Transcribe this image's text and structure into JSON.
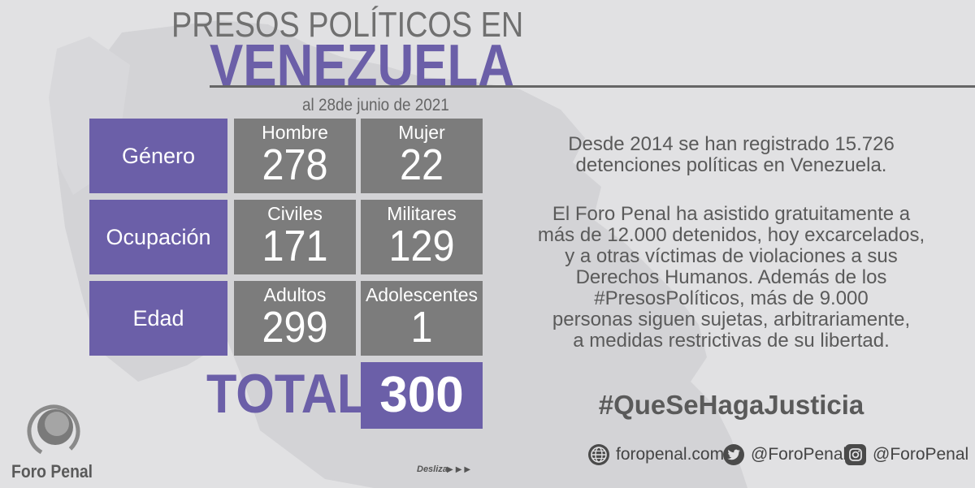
{
  "header": {
    "title_top": "PRESOS POLÍTICOS EN",
    "title_main": "VENEZUELA",
    "date": "al 28de junio de 2021"
  },
  "stats": {
    "rows": [
      {
        "category": "Género",
        "cells": [
          {
            "label": "Hombre",
            "value": "278"
          },
          {
            "label": "Mujer",
            "value": "22"
          }
        ]
      },
      {
        "category": "Ocupación",
        "cells": [
          {
            "label": "Civiles",
            "value": "171"
          },
          {
            "label": "Militares",
            "value": "129"
          }
        ]
      },
      {
        "category": "Edad",
        "cells": [
          {
            "label": "Adultos",
            "value": "299"
          },
          {
            "label": "Adolescentes",
            "value": "1"
          }
        ]
      }
    ],
    "total_label": "TOTAL",
    "total_value": "300"
  },
  "info": {
    "paragraph1": [
      "Desde 2014 se han registrado 15.726",
      "detenciones políticas en Venezuela."
    ],
    "paragraph2": [
      "El Foro Penal ha asistido gratuitamente a",
      "más de 12.000 detenidos, hoy excarcelados,",
      "y a otras víctimas de violaciones a sus",
      "Derechos Humanos. Además de los",
      "#PresosPolíticos, más de 9.000",
      "personas siguen sujetas, arbitrariamente,",
      "a medidas restrictivas de su libertad."
    ],
    "hashtag": "#QueSeHagaJusticia"
  },
  "footer": {
    "logo_text": "Foro Penal",
    "swipe_label": "Desliza",
    "swipe_arrows": "▶▶▶",
    "website": "foropenal.com",
    "twitter": "@ForoPenal",
    "instagram": "@ForoPenal",
    "icons": [
      "globe-icon",
      "twitter-icon",
      "instagram-icon"
    ]
  },
  "colors": {
    "accent": "#6b5fa8",
    "cell": "#7c7c7c",
    "background": "#e1e1e3",
    "text": "#5a5a5a"
  }
}
